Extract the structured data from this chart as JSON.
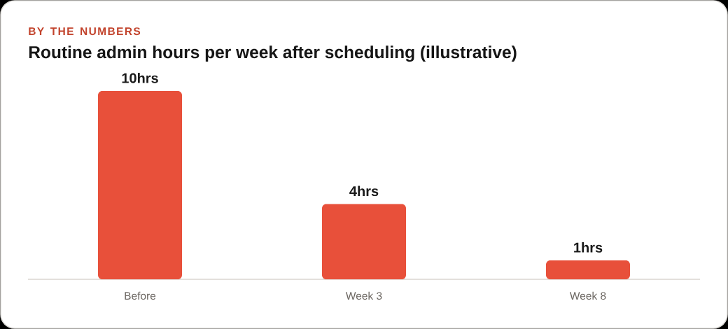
{
  "chart_data": {
    "type": "bar",
    "subtitle": "BY THE NUMBERS",
    "title": "Routine admin hours per week after scheduling (illustrative)",
    "categories": [
      "Before",
      "Week 3",
      "Week 8"
    ],
    "values": [
      10,
      4,
      1
    ],
    "value_labels": [
      "10hrs",
      "4hrs",
      "1hrs"
    ],
    "color": "#e8503a",
    "tick_labels": "x"
  }
}
